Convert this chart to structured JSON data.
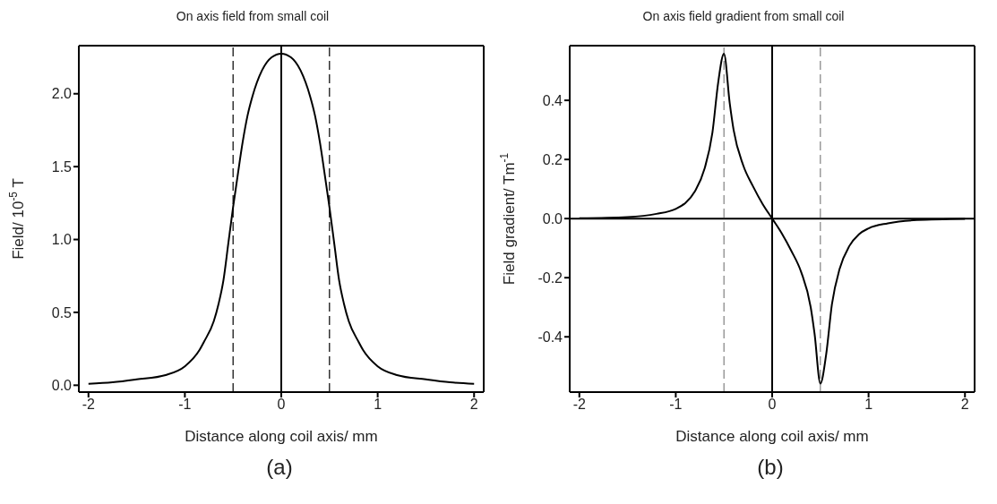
{
  "chart_data": [
    {
      "type": "line",
      "title": "On axis field from small coil",
      "xlabel": "Distance along coil axis/ mm",
      "ylabel": "Field/  10$^{-5}$ T",
      "annotations": [
        "(a)"
      ],
      "x": [
        -2,
        -1.75,
        -1.5,
        -1.2,
        -1,
        -0.85,
        -0.8,
        -0.7,
        -0.65,
        -0.6,
        -0.55,
        -0.5,
        -0.45,
        -0.4,
        -0.35,
        -0.3,
        -0.2,
        -0.1,
        0,
        0.1,
        0.2,
        0.3,
        0.35,
        0.4,
        0.45,
        0.5,
        0.55,
        0.6,
        0.65,
        0.7,
        0.8,
        0.85,
        1,
        1.2,
        1.5,
        1.75,
        2
      ],
      "series": [
        {
          "color": "#000000",
          "values": [
            0.01,
            0.02,
            0.04,
            0.07,
            0.13,
            0.24,
            0.3,
            0.44,
            0.56,
            0.72,
            0.97,
            1.22,
            1.45,
            1.67,
            1.85,
            1.98,
            2.16,
            2.25,
            2.275,
            2.25,
            2.16,
            1.98,
            1.85,
            1.67,
            1.45,
            1.22,
            0.97,
            0.72,
            0.56,
            0.44,
            0.3,
            0.24,
            0.13,
            0.07,
            0.04,
            0.02,
            0.01
          ]
        }
      ],
      "xlim": [
        -2.1,
        2.1
      ],
      "xticks": [
        -2,
        -1,
        0,
        1,
        2
      ],
      "ylim": [
        -0.047,
        2.33
      ],
      "yticks": [
        {
          "value": 0,
          "label": "0.0"
        },
        0.5,
        {
          "value": 1,
          "label": "1.0"
        },
        1.5,
        {
          "value": 2,
          "label": "2.0"
        }
      ],
      "ref_lines": [
        {
          "axis": "x",
          "value": -0.5,
          "color": "#000000",
          "line_style": "dashed"
        },
        {
          "axis": "x",
          "value": 0.5,
          "color": "#000000",
          "line_style": "dashed"
        },
        {
          "axis": "x",
          "value": 0,
          "color": "#000000",
          "line_style": "solid"
        }
      ],
      "grid": false,
      "legend": false,
      "marker": "none",
      "line_style": "solid"
    },
    {
      "type": "line",
      "title": "On axis field gradient from small coil",
      "xlabel": "Distance along coil axis/ mm",
      "ylabel": "Field gradient/ Tm$^{-1}$",
      "annotations": [
        "(b)"
      ],
      "x": [
        -2,
        -1.5,
        -1.2,
        -1,
        -0.9,
        -0.8,
        -0.7,
        -0.62,
        -0.56,
        -0.5,
        -0.44,
        -0.4,
        -0.3,
        -0.2,
        -0.1,
        0,
        0.1,
        0.2,
        0.3,
        0.4,
        0.44,
        0.5,
        0.56,
        0.62,
        0.7,
        0.8,
        0.9,
        1,
        1.2,
        1.5,
        2
      ],
      "series": [
        {
          "color": "#000000",
          "values": [
            0.001,
            0.005,
            0.016,
            0.033,
            0.053,
            0.093,
            0.17,
            0.29,
            0.46,
            0.558,
            0.39,
            0.3,
            0.18,
            0.11,
            0.05,
            0,
            -0.05,
            -0.11,
            -0.18,
            -0.3,
            -0.39,
            -0.558,
            -0.46,
            -0.29,
            -0.17,
            -0.093,
            -0.053,
            -0.033,
            -0.016,
            -0.005,
            -0.001
          ]
        }
      ],
      "xlim": [
        -2.1,
        2.1
      ],
      "xticks": [
        -2,
        -1,
        0,
        1,
        2
      ],
      "ylim": [
        -0.587,
        0.585
      ],
      "yticks": [
        -0.4,
        -0.2,
        {
          "value": 0,
          "label": "0.0"
        },
        0.2,
        0.4
      ],
      "ref_lines": [
        {
          "axis": "x",
          "value": -0.5,
          "color": "#808080",
          "line_style": "dashed"
        },
        {
          "axis": "x",
          "value": 0.5,
          "color": "#808080",
          "line_style": "dashed"
        },
        {
          "axis": "x",
          "value": 0,
          "color": "#000000",
          "line_style": "solid"
        },
        {
          "axis": "y",
          "value": 0,
          "color": "#000000",
          "line_style": "solid"
        }
      ],
      "grid": false,
      "legend": false,
      "marker": "none",
      "line_style": "solid"
    }
  ]
}
